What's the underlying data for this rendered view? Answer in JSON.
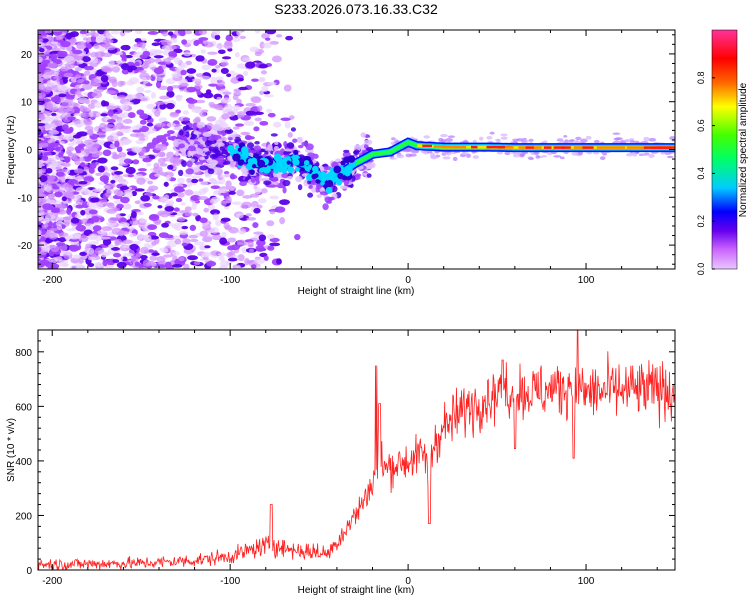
{
  "title": "S233.2026.073.16.33.C32",
  "chart_data": [
    {
      "type": "heatmap",
      "title": "S233.2026.073.16.33.C32",
      "xlabel": "Height of straight line (km)",
      "ylabel": "Frequency (Hz)",
      "xlim": [
        -208,
        150
      ],
      "ylim": [
        -25,
        25
      ],
      "xticks": [
        -200,
        -100,
        0,
        100
      ],
      "yticks": [
        -20,
        -10,
        0,
        10,
        20
      ],
      "colorbar": {
        "label": "Normalized spectral amplitude",
        "range": [
          0,
          1
        ],
        "ticks": [
          "0.0",
          "0.2",
          "0.4",
          "0.6",
          "0.8"
        ],
        "colors": [
          "#e8c8ff",
          "#cc66ff",
          "#6600ee",
          "#0000ff",
          "#00ccff",
          "#00ff66",
          "#44ff00",
          "#ffff00",
          "#ff6600",
          "#ff0000",
          "#ff3399"
        ]
      },
      "signal_trace": {
        "description": "spectral peak frequency vs height",
        "x": [
          -130,
          -110,
          -95,
          -85,
          -75,
          -65,
          -55,
          -45,
          -38,
          -30,
          -20,
          -10,
          0,
          5,
          20,
          45,
          60,
          100,
          150
        ],
        "y": [
          1.5,
          0.5,
          -1.5,
          -3,
          -3.5,
          -2,
          -4,
          -7,
          -5,
          -3,
          -1,
          -0.5,
          1.5,
          0.8,
          0.5,
          0.5,
          0.4,
          0.4,
          0.4
        ]
      }
    },
    {
      "type": "line",
      "xlabel": "Height of straight line (km)",
      "ylabel": "SNR (10 * v/v)",
      "xlim": [
        -208,
        150
      ],
      "ylim": [
        0,
        880
      ],
      "xticks": [
        -200,
        -100,
        0,
        100
      ],
      "yticks": [
        0,
        200,
        400,
        600,
        800
      ],
      "series": [
        {
          "name": "SNR",
          "color": "#ff2020",
          "x": [
            -208,
            -150,
            -120,
            -100,
            -80,
            -60,
            -45,
            -35,
            -25,
            -18,
            -10,
            0,
            10,
            20,
            30,
            40,
            50,
            60,
            70,
            80,
            90,
            100,
            120,
            150
          ],
          "y": [
            20,
            25,
            35,
            50,
            90,
            70,
            60,
            150,
            250,
            350,
            380,
            400,
            430,
            520,
            580,
            620,
            650,
            660,
            650,
            660,
            670,
            650,
            660,
            660
          ]
        }
      ],
      "spikes": [
        {
          "x": -77,
          "y": 240
        },
        {
          "x": -18,
          "y": 750
        },
        {
          "x": -16,
          "y": 610
        },
        {
          "x": 12,
          "y": 170
        },
        {
          "x": 53,
          "y": 770
        },
        {
          "x": 95,
          "y": 880
        },
        {
          "x": 93,
          "y": 410
        },
        {
          "x": 60,
          "y": 445
        }
      ]
    }
  ]
}
